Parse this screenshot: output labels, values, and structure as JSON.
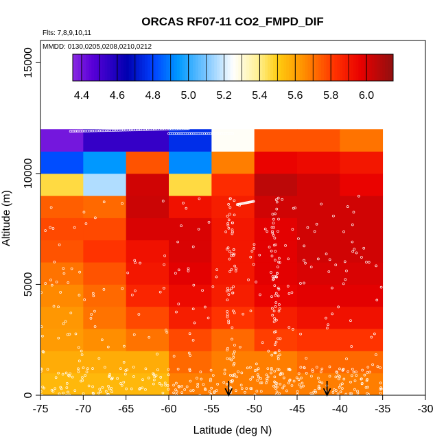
{
  "chart_data": {
    "type": "heatmap",
    "title": "ORCAS RF07-11 CO2_FMPD_DIF",
    "notes": [
      "Flts: 7,8,9,10,11",
      "MMDD: 0130,0205,0208,0210,0212"
    ],
    "xlabel": "Latitude (deg N)",
    "ylabel": "Altitude (m)",
    "xlim": [
      -75,
      -30
    ],
    "ylim": [
      0,
      16000
    ],
    "xticks": [
      "-75",
      "-70",
      "-65",
      "-60",
      "-55",
      "-50",
      "-45",
      "-40",
      "-35",
      "-30"
    ],
    "yticks": [
      "0",
      "5000",
      "10000",
      "15000"
    ],
    "x_edges": [
      -75,
      -70,
      -65,
      -60,
      -55,
      -50,
      -45,
      -40,
      -35
    ],
    "y_edges": [
      0,
      1000,
      2000,
      3000,
      4000,
      5000,
      6000,
      7000,
      8000,
      9000,
      10000,
      11000,
      12000
    ],
    "grid_values": [
      [
        5.55,
        5.55,
        5.55,
        5.68,
        5.68,
        5.68,
        5.68,
        5.68
      ],
      [
        5.58,
        5.58,
        5.58,
        5.72,
        5.68,
        5.68,
        5.72,
        5.72
      ],
      [
        5.62,
        5.65,
        5.7,
        5.78,
        5.72,
        5.8,
        5.82,
        5.82
      ],
      [
        5.63,
        5.7,
        5.78,
        5.88,
        5.82,
        5.88,
        5.92,
        5.92
      ],
      [
        5.66,
        5.72,
        5.86,
        5.94,
        5.88,
        5.96,
        5.98,
        5.98
      ],
      [
        5.7,
        5.76,
        5.9,
        5.98,
        5.9,
        5.98,
        6.0,
        6.0
      ],
      [
        5.76,
        5.82,
        5.92,
        6.0,
        5.9,
        5.98,
        6.02,
        6.02
      ],
      [
        5.78,
        5.78,
        6.0,
        6.0,
        5.9,
        5.98,
        6.02,
        6.02
      ],
      [
        5.74,
        5.72,
        6.03,
        5.92,
        5.88,
        6.02,
        6.02,
        6.02
      ],
      [
        5.46,
        5.16,
        6.02,
        5.46,
        5.84,
        6.06,
        6.02,
        5.96
      ],
      [
        4.82,
        4.94,
        5.76,
        4.92,
        5.68,
        5.96,
        5.94,
        5.9
      ],
      [
        4.4,
        4.54,
        4.54,
        4.76,
        5.26,
        5.76,
        5.76,
        5.7
      ]
    ],
    "colorbar": {
      "min": 4.35,
      "max": 6.15,
      "ticks": [
        "4.4",
        "4.6",
        "4.8",
        "5.0",
        "5.2",
        "5.4",
        "5.6",
        "5.8",
        "6.0"
      ]
    },
    "markers": [
      {
        "symbol": "arrow-down",
        "x": -53
      },
      {
        "symbol": "arrow-down",
        "x": -41.5
      }
    ],
    "colors": {
      "points": "#ffffff",
      "axis": "#000000"
    }
  }
}
